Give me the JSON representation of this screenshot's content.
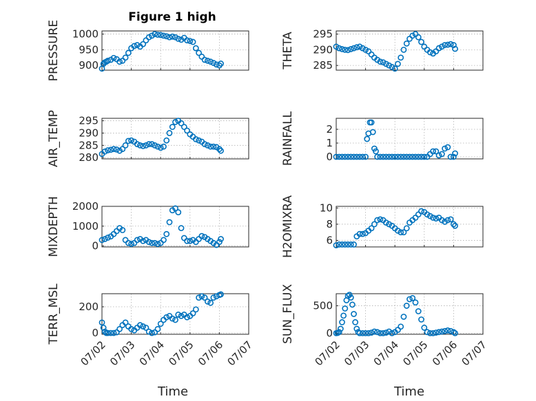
{
  "figure": {
    "title": "Figure 1 high"
  },
  "colors": {
    "marker": "#0072BD"
  },
  "x_ticks": [
    "07/02",
    "07/03",
    "07/04",
    "07/05",
    "07/06",
    "07/07"
  ],
  "x_label": "Time",
  "chart_data": [
    {
      "id": "pressure",
      "type": "scatter",
      "ylabel": "PRESSURE",
      "ylim": [
        885,
        1010
      ],
      "yticks": [
        900,
        950,
        1000
      ],
      "xlim": [
        0,
        5
      ],
      "x": [
        0,
        0.05,
        0.1,
        0.15,
        0.2,
        0.3,
        0.4,
        0.5,
        0.6,
        0.7,
        0.8,
        0.9,
        1,
        1.1,
        1.2,
        1.3,
        1.4,
        1.5,
        1.6,
        1.7,
        1.8,
        1.9,
        2,
        2.1,
        2.2,
        2.3,
        2.4,
        2.5,
        2.6,
        2.7,
        2.8,
        2.9,
        3,
        3.1,
        3.2,
        3.3,
        3.4,
        3.5,
        3.6,
        3.7,
        3.8,
        3.9,
        4,
        4.05
      ],
      "y": [
        890,
        905,
        910,
        912,
        915,
        918,
        924,
        920,
        912,
        915,
        925,
        940,
        955,
        962,
        965,
        960,
        968,
        980,
        990,
        995,
        1000,
        998,
        997,
        995,
        993,
        990,
        992,
        990,
        985,
        982,
        988,
        980,
        978,
        975,
        955,
        940,
        928,
        918,
        915,
        912,
        908,
        903,
        900,
        906
      ]
    },
    {
      "id": "theta",
      "type": "scatter",
      "ylabel": "THETA",
      "ylim": [
        283.5,
        296
      ],
      "yticks": [
        285,
        290,
        295
      ],
      "xlim": [
        0,
        5
      ],
      "x": [
        0,
        0.1,
        0.2,
        0.3,
        0.4,
        0.5,
        0.6,
        0.7,
        0.8,
        0.9,
        1,
        1.1,
        1.2,
        1.3,
        1.4,
        1.5,
        1.6,
        1.7,
        1.8,
        1.9,
        2,
        2.1,
        2.2,
        2.3,
        2.4,
        2.5,
        2.6,
        2.7,
        2.8,
        2.9,
        3,
        3.1,
        3.2,
        3.3,
        3.4,
        3.5,
        3.6,
        3.7,
        3.8,
        3.9,
        4,
        4.05
      ],
      "y": [
        291,
        290.5,
        290.2,
        290,
        289.9,
        290.2,
        290.5,
        290.8,
        291,
        290.5,
        290,
        289.5,
        288.5,
        287.5,
        286.8,
        286.2,
        286,
        285.5,
        285,
        284.5,
        284,
        285.5,
        287.5,
        290,
        292,
        293.5,
        294.5,
        295,
        294,
        292.5,
        291,
        290,
        289.2,
        288.8,
        289.5,
        290.5,
        291,
        291.5,
        291.6,
        291.8,
        291.5,
        290.3
      ]
    },
    {
      "id": "air_temp",
      "type": "scatter",
      "ylabel": "AIR_TEMP",
      "ylim": [
        279.5,
        296
      ],
      "yticks": [
        280,
        285,
        290,
        295
      ],
      "xlim": [
        0,
        5
      ],
      "x": [
        0,
        0.1,
        0.2,
        0.3,
        0.4,
        0.5,
        0.6,
        0.7,
        0.8,
        0.9,
        1,
        1.1,
        1.2,
        1.3,
        1.4,
        1.5,
        1.6,
        1.7,
        1.8,
        1.9,
        2,
        2.1,
        2.2,
        2.3,
        2.4,
        2.5,
        2.6,
        2.7,
        2.8,
        2.9,
        3,
        3.1,
        3.2,
        3.3,
        3.4,
        3.5,
        3.6,
        3.7,
        3.8,
        3.9,
        4,
        4.05
      ],
      "y": [
        281.5,
        282.5,
        283,
        283.2,
        283.5,
        283.3,
        282.8,
        283.5,
        285,
        286.8,
        287,
        286.5,
        285.5,
        285,
        284.7,
        285,
        285.5,
        285.5,
        285,
        284.5,
        284,
        284.5,
        287,
        290,
        292.5,
        294.5,
        295,
        294,
        292.5,
        291,
        289.5,
        288.5,
        287.5,
        287,
        286.5,
        285.5,
        285,
        284.5,
        284.5,
        284.3,
        283.5,
        282.8
      ]
    },
    {
      "id": "rainfall",
      "type": "scatter",
      "ylabel": "RAINFALL",
      "ylim": [
        -0.15,
        2.8
      ],
      "yticks": [
        0,
        1,
        2
      ],
      "xlim": [
        0,
        5
      ],
      "x": [
        0,
        0.1,
        0.2,
        0.3,
        0.4,
        0.5,
        0.6,
        0.7,
        0.8,
        0.9,
        1,
        1.05,
        1.1,
        1.15,
        1.2,
        1.25,
        1.3,
        1.35,
        1.4,
        1.5,
        1.6,
        1.7,
        1.8,
        1.9,
        2,
        2.1,
        2.2,
        2.3,
        2.4,
        2.5,
        2.6,
        2.7,
        2.8,
        2.9,
        3,
        3.1,
        3.2,
        3.3,
        3.4,
        3.5,
        3.6,
        3.7,
        3.8,
        3.9,
        4,
        4.05
      ],
      "y": [
        0,
        0,
        0,
        0,
        0,
        0,
        0,
        0,
        0,
        0,
        0,
        1.3,
        1.7,
        2.5,
        2.5,
        1.8,
        0.6,
        0.4,
        0,
        0,
        0,
        0,
        0,
        0,
        0,
        0,
        0,
        0,
        0,
        0,
        0,
        0,
        0,
        0,
        0,
        0,
        0.2,
        0.4,
        0.4,
        0.1,
        0.2,
        0.6,
        0.7,
        0,
        0,
        0.25
      ]
    },
    {
      "id": "mixdepth",
      "type": "scatter",
      "ylabel": "MIXDEPTH",
      "ylim": [
        -50,
        2000
      ],
      "yticks": [
        0,
        1000,
        2000
      ],
      "xlim": [
        0,
        5
      ],
      "x": [
        0,
        0.1,
        0.2,
        0.3,
        0.4,
        0.5,
        0.6,
        0.7,
        0.8,
        0.9,
        1,
        1.1,
        1.2,
        1.3,
        1.4,
        1.5,
        1.6,
        1.7,
        1.8,
        1.9,
        2,
        2.1,
        2.2,
        2.3,
        2.4,
        2.5,
        2.6,
        2.7,
        2.8,
        2.9,
        3,
        3.1,
        3.2,
        3.3,
        3.4,
        3.5,
        3.6,
        3.7,
        3.8,
        3.9,
        4,
        4.05
      ],
      "y": [
        300,
        350,
        420,
        480,
        600,
        750,
        900,
        800,
        300,
        150,
        100,
        150,
        300,
        350,
        250,
        300,
        200,
        150,
        150,
        100,
        150,
        300,
        600,
        1200,
        1800,
        1900,
        1700,
        900,
        400,
        250,
        250,
        300,
        200,
        350,
        500,
        450,
        350,
        250,
        150,
        50,
        200,
        350
      ]
    },
    {
      "id": "h2omixra",
      "type": "scatter",
      "ylabel": "H2OMIXRA",
      "ylim": [
        5.2,
        10.2
      ],
      "yticks": [
        6,
        8,
        10
      ],
      "xlim": [
        0,
        5
      ],
      "x": [
        0,
        0.1,
        0.2,
        0.3,
        0.4,
        0.5,
        0.6,
        0.7,
        0.8,
        0.9,
        1,
        1.1,
        1.2,
        1.3,
        1.4,
        1.5,
        1.6,
        1.7,
        1.8,
        1.9,
        2,
        2.1,
        2.2,
        2.3,
        2.4,
        2.5,
        2.6,
        2.7,
        2.8,
        2.9,
        3,
        3.1,
        3.2,
        3.3,
        3.4,
        3.5,
        3.6,
        3.7,
        3.8,
        3.9,
        4,
        4.05
      ],
      "y": [
        5.4,
        5.5,
        5.5,
        5.5,
        5.5,
        5.5,
        5.5,
        6.5,
        6.8,
        6.8,
        6.9,
        7.2,
        7.5,
        8,
        8.5,
        8.6,
        8.5,
        8.2,
        8,
        7.8,
        7.5,
        7.2,
        7,
        7,
        7.5,
        8.2,
        8.5,
        8.8,
        9.2,
        9.6,
        9.5,
        9.2,
        9,
        8.8,
        8.7,
        8.8,
        8.5,
        8.3,
        8.5,
        8.6,
        8,
        7.8
      ]
    },
    {
      "id": "terr_msl",
      "type": "scatter",
      "ylabel": "TERR_MSL",
      "ylim": [
        -10,
        300
      ],
      "yticks": [
        0,
        200
      ],
      "xlim": [
        0,
        5
      ],
      "x": [
        0,
        0.05,
        0.1,
        0.15,
        0.2,
        0.3,
        0.4,
        0.5,
        0.6,
        0.7,
        0.8,
        0.9,
        1,
        1.1,
        1.2,
        1.3,
        1.4,
        1.5,
        1.6,
        1.7,
        1.8,
        1.9,
        2,
        2.1,
        2.2,
        2.3,
        2.4,
        2.5,
        2.6,
        2.7,
        2.8,
        2.9,
        3,
        3.1,
        3.2,
        3.3,
        3.4,
        3.5,
        3.6,
        3.7,
        3.8,
        3.9,
        4,
        4.05
      ],
      "y": [
        80,
        40,
        10,
        0,
        0,
        0,
        0,
        5,
        30,
        60,
        80,
        50,
        30,
        20,
        40,
        60,
        50,
        40,
        10,
        0,
        5,
        30,
        70,
        100,
        120,
        130,
        110,
        100,
        140,
        130,
        140,
        120,
        130,
        150,
        180,
        270,
        280,
        270,
        240,
        230,
        270,
        280,
        290,
        295
      ]
    },
    {
      "id": "sun_flux",
      "type": "scatter",
      "ylabel": "SUN_FLUX",
      "ylim": [
        -20,
        720
      ],
      "yticks": [
        0,
        500
      ],
      "xlim": [
        0,
        5
      ],
      "x": [
        0,
        0.05,
        0.1,
        0.15,
        0.2,
        0.25,
        0.3,
        0.35,
        0.4,
        0.45,
        0.5,
        0.55,
        0.6,
        0.65,
        0.7,
        0.75,
        0.8,
        0.9,
        1,
        1.1,
        1.2,
        1.3,
        1.4,
        1.5,
        1.6,
        1.7,
        1.8,
        1.9,
        2,
        2.1,
        2.2,
        2.3,
        2.4,
        2.5,
        2.6,
        2.7,
        2.8,
        2.9,
        3,
        3.1,
        3.2,
        3.3,
        3.4,
        3.5,
        3.6,
        3.7,
        3.8,
        3.9,
        4,
        4.05
      ],
      "y": [
        0,
        5,
        20,
        80,
        200,
        320,
        450,
        600,
        680,
        700,
        650,
        520,
        350,
        200,
        80,
        20,
        0,
        0,
        0,
        0,
        10,
        30,
        20,
        0,
        0,
        10,
        30,
        0,
        20,
        60,
        120,
        300,
        500,
        620,
        640,
        560,
        400,
        250,
        100,
        20,
        0,
        0,
        10,
        20,
        30,
        40,
        50,
        40,
        20,
        0
      ]
    }
  ]
}
